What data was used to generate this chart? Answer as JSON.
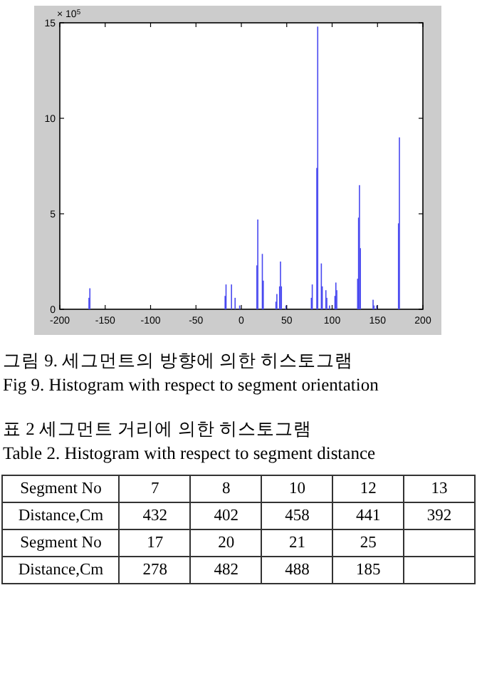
{
  "chart_data": [
    {
      "type": "bar",
      "color": "#4848f0",
      "xlim": [
        -200,
        200
      ],
      "xticks": [
        -200,
        -150,
        -100,
        -50,
        0,
        50,
        100,
        150,
        200
      ],
      "ylim": [
        0,
        15
      ],
      "yticks": [
        0,
        5,
        10,
        15
      ],
      "x": [
        -168,
        -167,
        -18,
        -17,
        -11,
        -7,
        -2,
        17,
        18,
        23,
        24,
        38,
        39,
        42,
        43,
        44,
        49,
        77,
        78,
        83,
        84,
        88,
        89,
        93,
        94,
        97,
        103,
        104,
        105,
        128,
        129,
        130,
        131,
        145,
        146,
        149,
        173,
        174
      ],
      "values": [
        0.6,
        1.1,
        0.7,
        1.3,
        1.3,
        0.6,
        0.2,
        2.3,
        4.7,
        2.9,
        1.5,
        0.4,
        0.8,
        1.2,
        2.5,
        1.2,
        0.2,
        0.6,
        1.3,
        7.4,
        14.8,
        2.4,
        1.2,
        1.0,
        0.6,
        0.2,
        0.7,
        1.4,
        1.0,
        1.6,
        4.8,
        6.5,
        3.2,
        0.5,
        0.2,
        0.2,
        4.5,
        9.0
      ],
      "annotations": [
        "× 10$^{5}$",
        "그림 9. 세그먼트의 방향에 의한 히스토그램",
        "Fig 9. Histogram with respect to segment orientation"
      ]
    },
    {
      "type": "other",
      "title": "표 2 세그먼트 거리에 의한 히스토그램",
      "subtitle": "Table 2. Histogram with respect to segment distance",
      "annotations": [
        "Segment No",
        "7",
        "8",
        "10",
        "12",
        "13",
        "Distance,Cm",
        "432",
        "402",
        "458",
        "441",
        "392",
        "Segment No",
        "17",
        "20",
        "21",
        "25",
        "Distance,Cm",
        "278",
        "482",
        "488",
        "185"
      ]
    }
  ]
}
